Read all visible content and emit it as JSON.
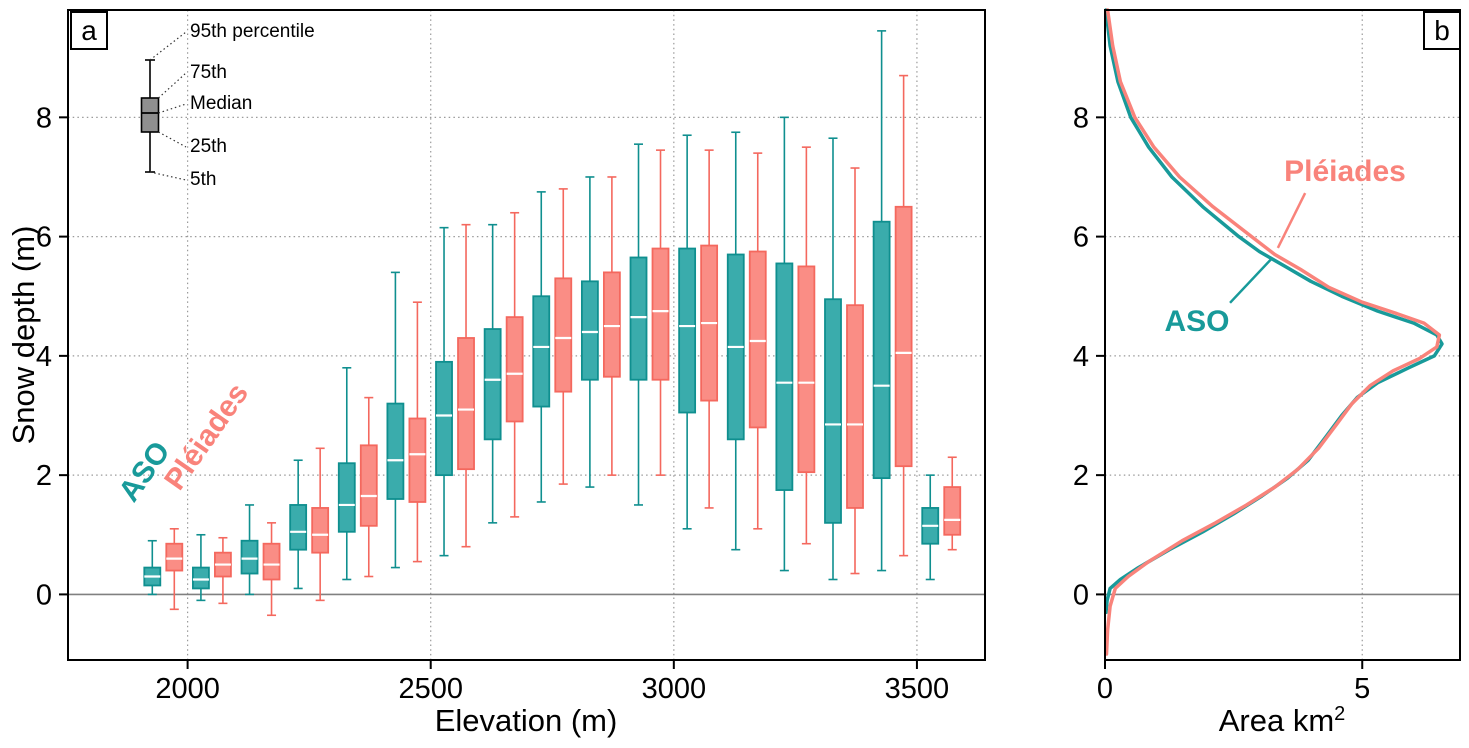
{
  "panel_a": {
    "letter": "a",
    "xlabel": "Elevation (m)",
    "ylabel": "Snow depth (m)",
    "legend_inset": {
      "labels": [
        "95th percentile",
        "75th",
        "Median",
        "25th",
        "5th"
      ]
    }
  },
  "panel_b": {
    "letter": "b",
    "xlabel_base": "Area km",
    "xlabel_sup": "2"
  },
  "colors": {
    "aso_edge": "#0f8f8f",
    "aso_fill": "#3aacac",
    "aso_text": "#189a9a",
    "pleiades_edge": "#f4685e",
    "pleiades_fill": "#fa8d85",
    "pleiades_text": "#f9837b",
    "grid": "#9a9a9a",
    "zero_line": "#808080",
    "inset_box_fill": "#8f8f8f"
  },
  "chart_data": [
    {
      "type": "boxplot",
      "xlabel": "Elevation (m)",
      "ylabel": "Snow depth (m)",
      "xticks": [
        2000,
        2500,
        3000,
        3500
      ],
      "yticks": [
        0,
        2,
        4,
        6,
        8
      ],
      "xlim": [
        1754,
        3640
      ],
      "ylim": [
        -1.1,
        9.8
      ],
      "grid": "dotted",
      "stat_order": [
        "p5",
        "p25",
        "median",
        "p75",
        "p95"
      ],
      "categories": [
        1950,
        2050,
        2150,
        2250,
        2350,
        2450,
        2550,
        2650,
        2750,
        2850,
        2950,
        3050,
        3150,
        3250,
        3350,
        3450,
        3550
      ],
      "series": [
        {
          "name": "ASO",
          "color": "#0f8f8f",
          "fill": "#3aacac",
          "boxes": [
            [
              0.0,
              0.15,
              0.3,
              0.45,
              0.9
            ],
            [
              -0.1,
              0.1,
              0.25,
              0.45,
              1.0
            ],
            [
              0.0,
              0.35,
              0.6,
              0.9,
              1.5
            ],
            [
              0.1,
              0.75,
              1.05,
              1.5,
              2.25
            ],
            [
              0.25,
              1.05,
              1.5,
              2.2,
              3.8
            ],
            [
              0.45,
              1.6,
              2.25,
              3.2,
              5.4
            ],
            [
              0.65,
              2.0,
              3.0,
              3.9,
              6.15
            ],
            [
              1.2,
              2.6,
              3.6,
              4.45,
              6.2
            ],
            [
              1.55,
              3.15,
              4.15,
              5.0,
              6.75
            ],
            [
              1.8,
              3.6,
              4.4,
              5.25,
              7.0
            ],
            [
              1.5,
              3.6,
              4.65,
              5.65,
              7.55
            ],
            [
              1.1,
              3.05,
              4.5,
              5.8,
              7.7
            ],
            [
              0.75,
              2.6,
              4.15,
              5.7,
              7.75
            ],
            [
              0.4,
              1.75,
              3.55,
              5.55,
              8.0
            ],
            [
              0.25,
              1.2,
              2.85,
              4.95,
              7.65
            ],
            [
              0.4,
              1.95,
              3.5,
              6.25,
              9.45
            ],
            [
              0.25,
              0.85,
              1.15,
              1.45,
              2.0
            ]
          ]
        },
        {
          "name": "Pléiades",
          "color": "#f4685e",
          "fill": "#fa8d85",
          "boxes": [
            [
              -0.25,
              0.4,
              0.6,
              0.85,
              1.1
            ],
            [
              -0.15,
              0.3,
              0.5,
              0.7,
              0.95
            ],
            [
              -0.35,
              0.25,
              0.5,
              0.85,
              1.2
            ],
            [
              -0.1,
              0.7,
              1.0,
              1.45,
              2.45
            ],
            [
              0.3,
              1.15,
              1.65,
              2.5,
              3.3
            ],
            [
              0.55,
              1.55,
              2.35,
              2.95,
              4.9
            ],
            [
              0.8,
              2.1,
              3.1,
              4.3,
              6.2
            ],
            [
              1.3,
              2.9,
              3.7,
              4.65,
              6.4
            ],
            [
              1.85,
              3.4,
              4.3,
              5.3,
              6.8
            ],
            [
              2.0,
              3.65,
              4.5,
              5.4,
              7.0
            ],
            [
              2.0,
              3.6,
              4.75,
              5.8,
              7.45
            ],
            [
              1.45,
              3.25,
              4.55,
              5.85,
              7.45
            ],
            [
              1.1,
              2.8,
              4.25,
              5.75,
              7.4
            ],
            [
              0.85,
              2.05,
              3.55,
              5.5,
              7.5
            ],
            [
              0.35,
              1.45,
              2.85,
              4.85,
              7.15
            ],
            [
              0.65,
              2.15,
              4.05,
              6.5,
              8.7
            ],
            [
              0.75,
              1.0,
              1.25,
              1.8,
              2.3
            ]
          ]
        }
      ]
    },
    {
      "type": "line",
      "xlabel": "Area km2",
      "ylabel": "Snow depth (m)",
      "xticks": [
        0,
        5
      ],
      "yticks": [
        0,
        2,
        4,
        6,
        8
      ],
      "xlim": [
        0,
        6.9
      ],
      "ylim": [
        -1.1,
        9.8
      ],
      "grid": "dotted",
      "series": [
        {
          "name": "ASO",
          "color": "#189a9a",
          "points": [
            [
              0.02,
              9.8
            ],
            [
              0.1,
              9.2
            ],
            [
              0.25,
              8.6
            ],
            [
              0.5,
              8.0
            ],
            [
              0.85,
              7.5
            ],
            [
              1.3,
              7.0
            ],
            [
              1.9,
              6.5
            ],
            [
              2.6,
              6.0
            ],
            [
              3.0,
              5.75
            ],
            [
              3.5,
              5.5
            ],
            [
              4.0,
              5.25
            ],
            [
              4.6,
              5.0
            ],
            [
              5.3,
              4.75
            ],
            [
              6.0,
              4.55
            ],
            [
              6.45,
              4.35
            ],
            [
              6.55,
              4.2
            ],
            [
              6.4,
              4.0
            ],
            [
              5.9,
              3.8
            ],
            [
              5.3,
              3.55
            ],
            [
              4.9,
              3.3
            ],
            [
              4.6,
              3.0
            ],
            [
              4.3,
              2.65
            ],
            [
              3.95,
              2.25
            ],
            [
              3.55,
              1.95
            ],
            [
              3.05,
              1.65
            ],
            [
              2.5,
              1.35
            ],
            [
              1.9,
              1.05
            ],
            [
              1.25,
              0.75
            ],
            [
              0.65,
              0.45
            ],
            [
              0.3,
              0.25
            ],
            [
              0.1,
              0.1
            ],
            [
              0.04,
              -0.1
            ],
            [
              0.02,
              -0.3
            ]
          ]
        },
        {
          "name": "Pléiades",
          "color": "#f9837b",
          "points": [
            [
              0.05,
              9.8
            ],
            [
              0.15,
              9.2
            ],
            [
              0.3,
              8.6
            ],
            [
              0.58,
              8.0
            ],
            [
              0.95,
              7.5
            ],
            [
              1.45,
              7.0
            ],
            [
              2.1,
              6.5
            ],
            [
              2.85,
              6.0
            ],
            [
              3.3,
              5.7
            ],
            [
              3.8,
              5.45
            ],
            [
              4.35,
              5.15
            ],
            [
              5.0,
              4.9
            ],
            [
              5.7,
              4.7
            ],
            [
              6.2,
              4.55
            ],
            [
              6.5,
              4.35
            ],
            [
              6.45,
              4.15
            ],
            [
              6.1,
              3.95
            ],
            [
              5.6,
              3.75
            ],
            [
              5.15,
              3.5
            ],
            [
              4.8,
              3.2
            ],
            [
              4.5,
              2.85
            ],
            [
              4.15,
              2.45
            ],
            [
              3.75,
              2.1
            ],
            [
              3.3,
              1.8
            ],
            [
              2.75,
              1.5
            ],
            [
              2.15,
              1.2
            ],
            [
              1.5,
              0.9
            ],
            [
              0.85,
              0.55
            ],
            [
              0.45,
              0.3
            ],
            [
              0.2,
              0.1
            ],
            [
              0.1,
              -0.2
            ],
            [
              0.05,
              -0.6
            ],
            [
              0.03,
              -1.0
            ]
          ]
        }
      ],
      "annotations": [
        {
          "series": "Pléiades",
          "color": "#f9837b",
          "line": [
            [
              3.89,
              6.73
            ],
            [
              3.36,
              5.81
            ]
          ]
        },
        {
          "series": "ASO",
          "color": "#189a9a",
          "line": [
            [
              2.43,
              4.89
            ],
            [
              3.25,
              5.64
            ]
          ]
        }
      ]
    }
  ]
}
